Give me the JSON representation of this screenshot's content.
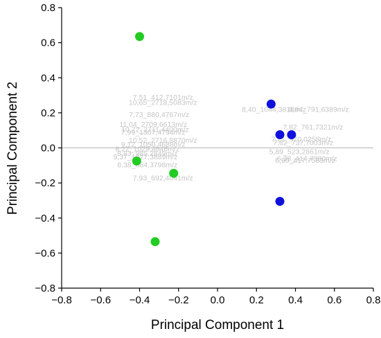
{
  "chart_data": {
    "type": "scatter",
    "xlabel": "Principal Component 1",
    "ylabel": "Principal Component 2",
    "xlim": [
      -0.8,
      0.8
    ],
    "ylim": [
      -0.8,
      0.8
    ],
    "xticks": [
      -0.8,
      -0.6,
      -0.4,
      -0.2,
      0.0,
      0.2,
      0.4,
      0.6,
      0.8
    ],
    "yticks": [
      -0.8,
      -0.6,
      -0.4,
      -0.2,
      0.0,
      0.2,
      0.4,
      0.6,
      0.8
    ],
    "tick_labels": [
      "−0.8",
      "−0.6",
      "−0.4",
      "−0.2",
      "0.0",
      "0.2",
      "0.4",
      "0.6",
      "0.8"
    ],
    "zero_line": true,
    "grid": false,
    "series": [
      {
        "color": "#22cc22",
        "points": [
          {
            "x": -0.4,
            "y": 0.635
          },
          {
            "x": -0.415,
            "y": -0.075
          },
          {
            "x": -0.225,
            "y": -0.145
          },
          {
            "x": -0.32,
            "y": -0.535
          }
        ]
      },
      {
        "color": "#1010dd",
        "points": [
          {
            "x": 0.275,
            "y": 0.25
          },
          {
            "x": 0.32,
            "y": 0.075
          },
          {
            "x": 0.38,
            "y": 0.075
          },
          {
            "x": 0.32,
            "y": -0.305
          }
        ]
      }
    ],
    "loading_labels": [
      {
        "text": "7,51_412,7101m/z",
        "x": -0.28,
        "y": 0.275
      },
      {
        "text": "10,65_2718,5083m/z",
        "x": -0.28,
        "y": 0.245
      },
      {
        "text": "7,73_880,4767m/z",
        "x": -0.3,
        "y": 0.175
      },
      {
        "text": "11,04_2709,6613m/z",
        "x": -0.33,
        "y": 0.12
      },
      {
        "text": "10,72_2711,4400m/z",
        "x": -0.32,
        "y": 0.09
      },
      {
        "text": "7,99_1307,4794m/z",
        "x": -0.33,
        "y": 0.075
      },
      {
        "text": "10,52_2716,8870m/z",
        "x": -0.28,
        "y": 0.03
      },
      {
        "text": "9,12_1050,4688m/z",
        "x": -0.33,
        "y": 0.005
      },
      {
        "text": "8,22_1029,4646m/z",
        "x": -0.36,
        "y": -0.02
      },
      {
        "text": "8,83_985,2849m/z",
        "x": -0.36,
        "y": -0.045
      },
      {
        "text": "9,37_1027,3889m/z",
        "x": -0.37,
        "y": -0.065
      },
      {
        "text": "8,38_684,3798m/z",
        "x": -0.36,
        "y": -0.11
      },
      {
        "text": "7,93_692,4041m/z",
        "x": -0.28,
        "y": -0.185
      },
      {
        "text": "8,40_1044,3818m/z",
        "x": 0.29,
        "y": 0.205
      },
      {
        "text": "8,94_791,6389m/z",
        "x": 0.52,
        "y": 0.205
      },
      {
        "text": "7,82_761,7321m/z",
        "x": 0.49,
        "y": 0.105
      },
      {
        "text": "7,21_970,0258m/z",
        "x": 0.43,
        "y": 0.035
      },
      {
        "text": "7,62_737,7003m/z",
        "x": 0.44,
        "y": 0.015
      },
      {
        "text": "5,89_523,2861m/z",
        "x": 0.42,
        "y": -0.035
      },
      {
        "text": "6,90_417,7583m/z",
        "x": 0.45,
        "y": -0.085
      },
      {
        "text": "6,38_414,7380m/z",
        "x": 0.46,
        "y": -0.075
      }
    ]
  }
}
